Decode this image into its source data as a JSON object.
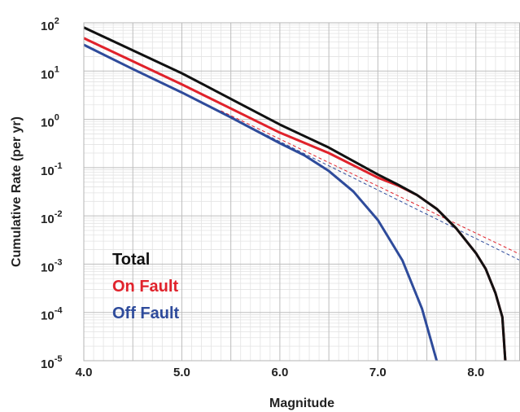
{
  "chart_data": {
    "type": "line",
    "xlabel": "Magnitude",
    "ylabel": "Cumulative Rate (per yr)",
    "xlim": [
      4.0,
      8.45
    ],
    "ylim": [
      1e-05,
      100
    ],
    "yscale": "log",
    "x_tick_labels": [
      {
        "value": 4.0,
        "label": "4.0"
      },
      {
        "value": 5.0,
        "label": "5.0"
      },
      {
        "value": 6.0,
        "label": "6.0"
      },
      {
        "value": 7.0,
        "label": "7.0"
      },
      {
        "value": 8.0,
        "label": "8.0"
      }
    ],
    "y_tick_labels": [
      {
        "value": 100,
        "base": "10",
        "exp": "2"
      },
      {
        "value": 10,
        "base": "10",
        "exp": "1"
      },
      {
        "value": 1,
        "base": "10",
        "exp": "0"
      },
      {
        "value": 0.1,
        "base": "10",
        "exp": "-1"
      },
      {
        "value": 0.01,
        "base": "10",
        "exp": "-2"
      },
      {
        "value": 0.001,
        "base": "10",
        "exp": "-3"
      },
      {
        "value": 0.0001,
        "base": "10",
        "exp": "-4"
      },
      {
        "value": 1e-05,
        "base": "10",
        "exp": "-5"
      }
    ],
    "grid": true,
    "legend_position": "left",
    "series": [
      {
        "name": "Total",
        "color": "#111111",
        "style": "solid",
        "points": [
          [
            4.0,
            80
          ],
          [
            5.0,
            9.0
          ],
          [
            6.0,
            0.78
          ],
          [
            6.5,
            0.26
          ],
          [
            7.0,
            0.072
          ],
          [
            7.2,
            0.045
          ],
          [
            7.4,
            0.027
          ],
          [
            7.6,
            0.014
          ],
          [
            7.8,
            0.0055
          ],
          [
            8.0,
            0.0017
          ],
          [
            8.1,
            0.0008
          ],
          [
            8.2,
            0.00025
          ],
          [
            8.27,
            8e-05
          ],
          [
            8.3,
            1e-05
          ]
        ]
      },
      {
        "name": "On Fault",
        "color": "#e0222b",
        "style": "solid",
        "points": [
          [
            4.0,
            48
          ],
          [
            5.0,
            5.3
          ],
          [
            6.0,
            0.53
          ],
          [
            6.5,
            0.2
          ],
          [
            7.0,
            0.062
          ],
          [
            7.2,
            0.043
          ],
          [
            7.4,
            0.027
          ],
          [
            7.6,
            0.014
          ],
          [
            7.8,
            0.0055
          ],
          [
            8.0,
            0.0017
          ],
          [
            8.1,
            0.0008
          ],
          [
            8.2,
            0.00025
          ],
          [
            8.27,
            8e-05
          ],
          [
            8.3,
            1e-05
          ]
        ]
      },
      {
        "name": "Off Fault",
        "color": "#2e4b9b",
        "style": "solid",
        "points": [
          [
            4.0,
            35
          ],
          [
            4.5,
            11
          ],
          [
            5.0,
            3.6
          ],
          [
            5.5,
            1.1
          ],
          [
            6.0,
            0.32
          ],
          [
            6.25,
            0.18
          ],
          [
            6.5,
            0.085
          ],
          [
            6.75,
            0.032
          ],
          [
            7.0,
            0.0082
          ],
          [
            7.25,
            0.0012
          ],
          [
            7.45,
            0.00012
          ],
          [
            7.6,
            1e-05
          ]
        ]
      },
      {
        "name": "",
        "color": "#e0222b",
        "style": "dashed",
        "points": [
          [
            5.4,
            1.5
          ],
          [
            8.45,
            0.0016
          ]
        ]
      },
      {
        "name": "",
        "color": "#2e4b9b",
        "style": "dashed",
        "points": [
          [
            5.5,
            1.1
          ],
          [
            8.45,
            0.0012
          ]
        ]
      }
    ],
    "legend": [
      {
        "label": "Total",
        "color": "#111111"
      },
      {
        "label": "On Fault",
        "color": "#e0222b"
      },
      {
        "label": "Off Fault",
        "color": "#2e4b9b"
      }
    ]
  }
}
